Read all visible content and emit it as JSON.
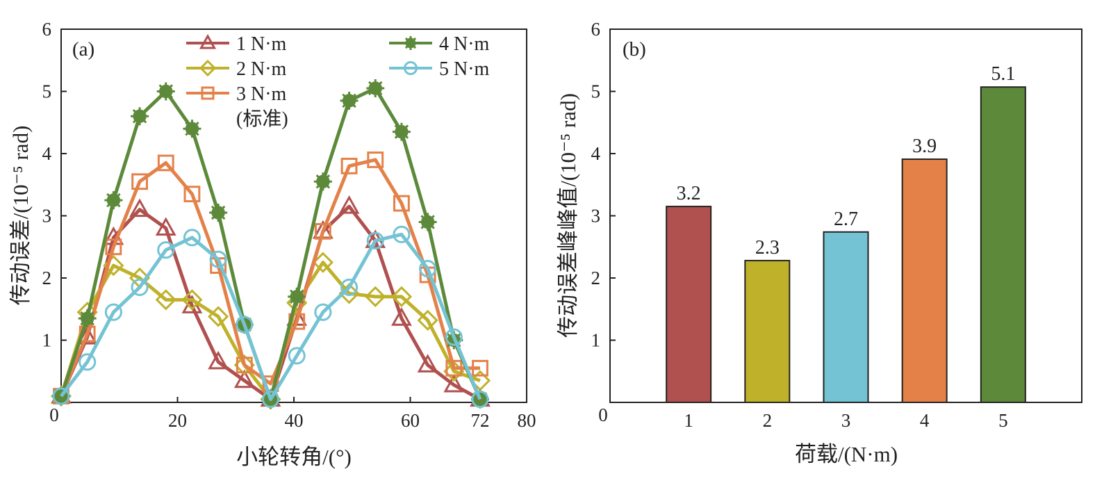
{
  "chart_data": [
    {
      "type": "line",
      "panel_label": "(a)",
      "xlabel": "小轮转角/(°)",
      "ylabel": "传动误差/(10⁻⁵ rad)",
      "xlim": [
        0,
        80
      ],
      "ylim": [
        0,
        6
      ],
      "x_ticks": [
        "0",
        "20",
        "40",
        "60",
        "72",
        "80"
      ],
      "x_tick_values": [
        0,
        20,
        40,
        60,
        72,
        80
      ],
      "y_ticks": [
        "1",
        "2",
        "3",
        "4",
        "5",
        "6"
      ],
      "y_tick_values": [
        1,
        2,
        3,
        4,
        5,
        6
      ],
      "grid": false,
      "legend_position": "top",
      "x": [
        0,
        4.5,
        9,
        13.5,
        18,
        22.5,
        27,
        31.5,
        36,
        40.5,
        45,
        49.5,
        54,
        58.5,
        63,
        67.5,
        72
      ],
      "series": [
        {
          "name": "1 N·m",
          "marker": "triangle",
          "color": "#b0504f",
          "values": [
            0.1,
            1.05,
            2.65,
            3.1,
            2.8,
            1.55,
            0.65,
            0.35,
            0.05,
            1.35,
            2.75,
            3.15,
            2.6,
            1.35,
            0.6,
            0.28,
            0.05
          ]
        },
        {
          "name": "2 N·m",
          "marker": "diamond",
          "color": "#bfb12a",
          "values": [
            0.1,
            1.45,
            2.2,
            2.0,
            1.65,
            1.65,
            1.38,
            0.6,
            0.05,
            1.6,
            2.25,
            1.75,
            1.7,
            1.7,
            1.32,
            0.5,
            0.35
          ]
        },
        {
          "name": "3 N·m",
          "sub_label": "(标准)",
          "marker": "square",
          "color": "#e48149",
          "values": [
            0.1,
            1.1,
            2.5,
            3.55,
            3.85,
            3.35,
            2.2,
            0.6,
            0.3,
            1.3,
            2.75,
            3.8,
            3.9,
            3.2,
            2.05,
            0.55,
            0.55
          ]
        },
        {
          "name": "4 N·m",
          "marker": "star",
          "color": "#5c8a3a",
          "values": [
            0.1,
            1.35,
            3.25,
            4.6,
            5.0,
            4.4,
            3.05,
            1.25,
            0.05,
            1.7,
            3.55,
            4.85,
            5.05,
            4.35,
            2.9,
            1.0,
            0.05
          ]
        },
        {
          "name": "5 N·m",
          "marker": "circle",
          "color": "#73c3d4",
          "values": [
            0.1,
            0.65,
            1.45,
            1.85,
            2.45,
            2.65,
            2.3,
            1.25,
            0.05,
            0.75,
            1.45,
            1.85,
            2.6,
            2.7,
            2.15,
            1.05,
            0.05
          ]
        }
      ]
    },
    {
      "type": "bar",
      "panel_label": "(b)",
      "xlabel": "荷载/(N·m)",
      "ylabel": "传动误差峰峰值/(10⁻⁵ rad)",
      "xlim": [
        0,
        6
      ],
      "ylim": [
        0,
        6
      ],
      "categories": [
        "1",
        "2",
        "3",
        "4",
        "5"
      ],
      "values": [
        3.15,
        2.28,
        2.74,
        3.91,
        5.07
      ],
      "data_labels": [
        "3.2",
        "2.3",
        "2.7",
        "3.9",
        "5.1"
      ],
      "colors": [
        "#b0504f",
        "#bfb12a",
        "#73c3d4",
        "#e48149",
        "#5c8a3a"
      ],
      "y_ticks": [
        "1",
        "2",
        "3",
        "4",
        "5",
        "6"
      ],
      "y_tick_values": [
        1,
        2,
        3,
        4,
        5,
        6
      ],
      "grid": false
    }
  ]
}
